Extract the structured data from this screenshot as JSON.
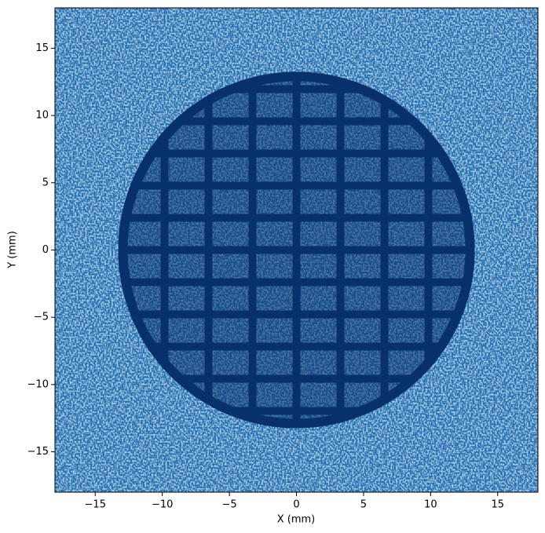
{
  "chart_data": {
    "type": "heatmap",
    "x_label": "X (mm)",
    "y_label": "Y (mm)",
    "xlim": [
      -18,
      18
    ],
    "ylim": [
      -18,
      18
    ],
    "xticks": [
      {
        "value": -15,
        "label": "−15"
      },
      {
        "value": -10,
        "label": "−10"
      },
      {
        "value": -5,
        "label": "−5"
      },
      0,
      5,
      10,
      15
    ],
    "yticks": [
      {
        "value": -15,
        "label": "−15"
      },
      {
        "value": -10,
        "label": "−10"
      },
      {
        "value": -5,
        "label": "−5"
      },
      0,
      5,
      10,
      15
    ],
    "colormap": [
      "#08306b",
      "#2171b5",
      "#9ecae1"
    ]
  }
}
